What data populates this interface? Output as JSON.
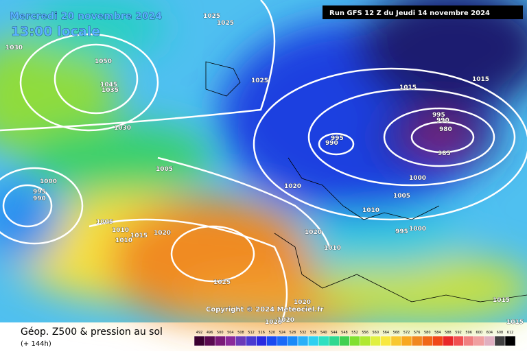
{
  "header": {
    "date": "Mercredi 20 novembre 2024",
    "time": "13:00 locale",
    "run": "Run GFS 12 Z du Jeudi 14 novembre 2024"
  },
  "copyright": "Copyright © 2024 Meteociel.fr",
  "footer": {
    "title": "Géop. Z500 & pression au sol",
    "lead": "(+ 144h)"
  },
  "colorbar": [
    "492",
    "496",
    "500",
    "504",
    "508",
    "512",
    "516",
    "520",
    "524",
    "528",
    "532",
    "536",
    "540",
    "544",
    "548",
    "552",
    "556",
    "560",
    "564",
    "568",
    "572",
    "576",
    "580",
    "584",
    "588",
    "592",
    "596",
    "600",
    "604",
    "608",
    "612"
  ],
  "isobar_labels": [
    "1025",
    "1025",
    "1030",
    "1050",
    "1045",
    "1035",
    "1025",
    "1015",
    "1015",
    "1030",
    "995",
    "990",
    "980",
    "985",
    "995",
    "990",
    "1005",
    "1000",
    "995",
    "990",
    "1020",
    "1000",
    "1005",
    "1010",
    "1005",
    "1010",
    "1010",
    "1015",
    "1020",
    "1020",
    "995",
    "1000",
    "1010",
    "1025",
    "1020",
    "1015",
    "1020",
    "1020",
    "1015"
  ]
}
